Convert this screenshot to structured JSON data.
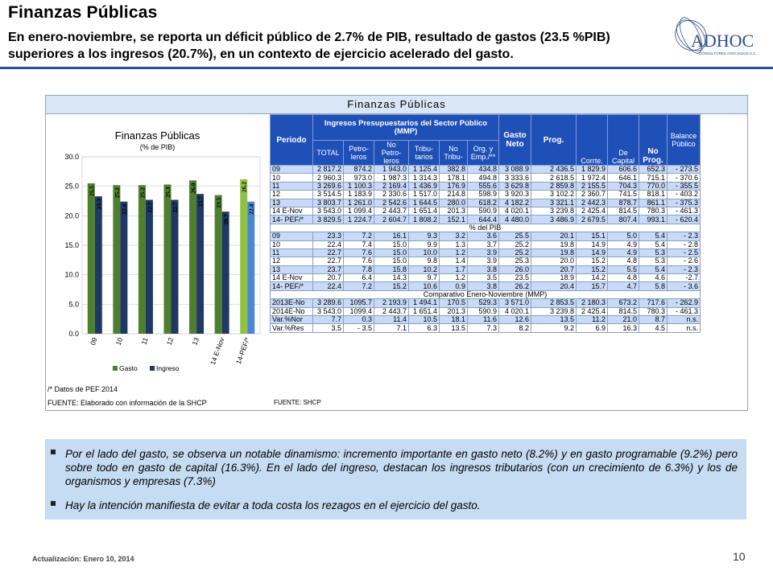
{
  "header": {
    "title": "Finanzas Públicas",
    "subtitle": "En enero-noviembre, se reporta un déficit público de 2.7% de PIB, resultado de gastos (23.5 %PIB) superiores a los ingresos (20.7%), en un contexto de ejercicio acelerado del gasto.",
    "logo_text": "ADHOC",
    "logo_sub": "CONSULTORES ASOCIADOS S.C.",
    "logo_color": "#2f4e8c"
  },
  "panel": {
    "title": "Finanzas Públicas"
  },
  "chart_data": {
    "type": "bar",
    "title": "Finanzas Públicas",
    "subtitle": "(% de PIB)",
    "categories": [
      "09",
      "10",
      "11",
      "12",
      "13",
      "14 E-Nov",
      "14-PEF/*"
    ],
    "series": [
      {
        "name": "Gasto",
        "values": [
          25.5,
          25.2,
          25.2,
          25.3,
          26.0,
          23.5,
          26.2
        ],
        "color": "#4e7f2e"
      },
      {
        "name": "Ingreso",
        "values": [
          23.3,
          22.4,
          22.7,
          22.7,
          23.7,
          20.7,
          22.4
        ],
        "color": "#1f3864"
      }
    ],
    "last_bar_colors": {
      "Gasto": "#92c047",
      "Ingreso": "#4a86d6"
    },
    "data_labels": {
      "Gasto": [
        "25.5",
        "25.2",
        "25.2",
        "25.3",
        "26.0",
        "23.5",
        "26.2"
      ],
      "Ingreso": [
        "23.3",
        "22.4",
        "22.7",
        "22.7",
        "23.7",
        "20.7",
        "22.4"
      ]
    },
    "yticks": [
      "0.0",
      "5.0",
      "10.0",
      "15.0",
      "20.0",
      "25.0",
      "30.0"
    ],
    "ylim": [
      0,
      30
    ],
    "grid": true,
    "legend": "bottom"
  },
  "table": {
    "header": {
      "periodo": "Periodo",
      "ingresos": "Ingresos Presupuestarios del Sector Público (MMP)",
      "gasto": "Gasto Neto",
      "prog": "Prog.",
      "corr": "Corrte.",
      "decap": "De Capital",
      "noprog": "No Prog.",
      "balance": "Balance Público",
      "cols": [
        "TOTAL",
        "Petro-leros",
        "No Petro-leros",
        "Tribu-tarios",
        "No Tribu-",
        "Org. y Emp./**"
      ]
    },
    "section1": [
      [
        "09",
        "2 817.2",
        "874.2",
        "1 943.0",
        "1 125.4",
        "382.8",
        "434.8",
        "3 088.9",
        "2 436.5",
        "1 829.9",
        "606.6",
        "652.3",
        "- 273.5"
      ],
      [
        "10",
        "2 960.3",
        "973.0",
        "1 987.3",
        "1 314.3",
        "178.1",
        "494.8",
        "3 333.6",
        "2 618.5",
        "1 972.4",
        "646.1",
        "715.1",
        "- 370.6"
      ],
      [
        "11",
        "3 269.6",
        "1 100.3",
        "2 169.4",
        "1 436.9",
        "176.9",
        "555.6",
        "3 629.8",
        "2 859.8",
        "2 155.5",
        "704.3",
        "770.0",
        "- 355.5"
      ],
      [
        "12",
        "3 514.5",
        "1 183.9",
        "2 330.6",
        "1 517.0",
        "214.8",
        "598.9",
        "3 920.3",
        "3 102.2",
        "2 360.7",
        "741.5",
        "818.1",
        "- 403.2"
      ],
      [
        "13",
        "3 803.7",
        "1 261.0",
        "2 542.6",
        "1 644.5",
        "280.0",
        "618.2",
        "4 182.2",
        "3 321.1",
        "2 442.3",
        "878.7",
        "861.1",
        "- 375.3"
      ],
      [
        "14 E-Nov",
        "3 543.0",
        "1 099.4",
        "2 443.7",
        "1 651.4",
        "201.3",
        "590.9",
        "4 020.1",
        "3 239.8",
        "2 425.4",
        "814.5",
        "780.3",
        "- 461.3"
      ],
      [
        "14- PEF/*",
        "3 829.5",
        "1 224.7",
        "2 604.7",
        "1 808.2",
        "152.1",
        "644.4",
        "4 480.0",
        "3 486.9",
        "2 679.5",
        "807.4",
        "993.1",
        "- 620.4"
      ]
    ],
    "section2_title": "% del PIB",
    "section2": [
      [
        "09",
        "23.3",
        "7.2",
        "16.1",
        "9.3",
        "3.2",
        "3.6",
        "25.5",
        "20.1",
        "15.1",
        "5.0",
        "5.4",
        "- 2.3"
      ],
      [
        "10",
        "22.4",
        "7.4",
        "15.0",
        "9.9",
        "1.3",
        "3.7",
        "25.2",
        "19.8",
        "14.9",
        "4.9",
        "5.4",
        "- 2.8"
      ],
      [
        "11",
        "22.7",
        "7.6",
        "15.0",
        "10.0",
        "1.2",
        "3.9",
        "25.2",
        "19.8",
        "14.9",
        "4.9",
        "5.3",
        "- 2.5"
      ],
      [
        "12",
        "22.7",
        "7.6",
        "15.0",
        "9.8",
        "1.4",
        "3.9",
        "25.3",
        "20.0",
        "15.2",
        "4.8",
        "5.3",
        "- 2.6"
      ],
      [
        "13",
        "23.7",
        "7.8",
        "15.8",
        "10.2",
        "1.7",
        "3.8",
        "26.0",
        "20.7",
        "15.2",
        "5.5",
        "5.4",
        "- 2.3"
      ],
      [
        "14 E-Nov",
        "20.7",
        "6.4",
        "14.3",
        "9.7",
        "1.2",
        "3.5",
        "23.5",
        "18.9",
        "14.2",
        "4.8",
        "4.6",
        "-2.7"
      ],
      [
        "14- PEF/*",
        "22.4",
        "7.2",
        "15.2",
        "10.6",
        "0.9",
        "3.8",
        "26.2",
        "20.4",
        "15.7",
        "4.7",
        "5.8",
        "- 3.6"
      ]
    ],
    "section3_title": "Comparativo Enero-Noviembre (MMP)",
    "section3": [
      [
        "2013E-No",
        "3 289.6",
        "1095.7",
        "2 193.9",
        "1 494.1",
        "170.5",
        "529.3",
        "3 571.0",
        "2 853.5",
        "2 180.3",
        "673.2",
        "717.6",
        "- 262.9"
      ],
      [
        "2014E-No",
        "3 543.0",
        "1099.4",
        "2 443.7",
        "1 651.4",
        "201.3",
        "590.9",
        "4 020.1",
        "3 239.8",
        "2 425.4",
        "814.5",
        "780.3",
        "- 461.3"
      ],
      [
        "Var.%Nor",
        "7.7",
        "0.3",
        "11.4",
        "10.5",
        "18.1",
        "11.6",
        "12.6",
        "13.5",
        "11.2",
        "21.0",
        "8.7",
        "n.s."
      ],
      [
        "Var.%Res",
        "3.5",
        "- 3.5",
        "7.1",
        "6.3",
        "13.5",
        "7.3",
        "8.2",
        "9.2",
        "6.9",
        "16.3",
        "4.5",
        "n.s."
      ]
    ]
  },
  "footnotes": {
    "pef": "/* Datos de PEF 2014",
    "fuente_chart": "FUENTE: Elaborado con información de la SHCP",
    "fuente_table": "FUENTE: SHCP"
  },
  "notes": {
    "bullet1": "Por el lado del gasto, se observa un notable dinamismo: incremento importante en gasto neto (8.2%) y en gasto programable (9.2%) pero sobre todo en gasto de capital (16.3%). En el lado del ingreso, destacan los ingresos tributarios (con un crecimiento de 6.3%) y los de organismos y empresas (7.3%)",
    "bullet2": "Hay la intención manifiesta de evitar a toda costa los rezagos en el ejercicio del gasto."
  },
  "footer": {
    "update": "Actualización: Enero 10, 2014",
    "page": "10"
  }
}
